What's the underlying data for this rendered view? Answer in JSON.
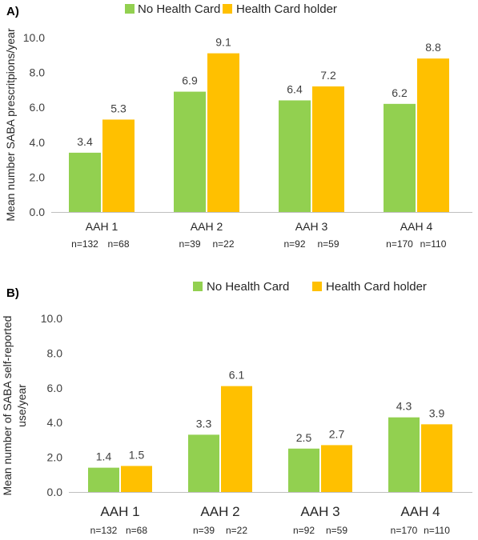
{
  "colors": {
    "no_card": "#92D050",
    "card_holder": "#FFC000",
    "axis": "#BFBFBF",
    "text": "#262626"
  },
  "chart_data": [
    {
      "panel": "A)",
      "type": "bar",
      "categories": [
        "AAH 1",
        "AAH 2",
        "AAH 3",
        "AAH 4"
      ],
      "series": [
        {
          "name": "No Health Card",
          "values": [
            3.4,
            6.9,
            6.4,
            6.2
          ],
          "labels": [
            "3.4",
            "6.9",
            "6.4",
            "6.2"
          ]
        },
        {
          "name": "Health Card holder",
          "values": [
            5.3,
            9.1,
            7.2,
            8.8
          ],
          "labels": [
            "5.3",
            "9.1",
            "7.2",
            "8.8"
          ]
        }
      ],
      "ylabel": "Mean number SABA prescritpions/year",
      "ylim": [
        0,
        10
      ],
      "yticks": [
        "0.0",
        "2.0",
        "4.0",
        "6.0",
        "8.0",
        "10.0"
      ],
      "sample_sizes": [
        [
          "n=132",
          "n=68"
        ],
        [
          "n=39",
          "n=22"
        ],
        [
          "n=92",
          "n=59"
        ],
        [
          "n=170",
          "n=110"
        ]
      ],
      "legend": "top-center",
      "grid": false
    },
    {
      "panel": "B)",
      "type": "bar",
      "categories": [
        "AAH 1",
        "AAH 2",
        "AAH 3",
        "AAH 4"
      ],
      "series": [
        {
          "name": "No Health Card",
          "values": [
            1.4,
            3.3,
            2.5,
            4.3
          ],
          "labels": [
            "1.4",
            "3.3",
            "2.5",
            "4.3"
          ]
        },
        {
          "name": "Health Card holder",
          "values": [
            1.5,
            6.1,
            2.7,
            3.9
          ],
          "labels": [
            "1.5",
            "6.1",
            "2.7",
            "3.9"
          ]
        }
      ],
      "ylabel_lines": [
        "Mean number of SABA self-reported",
        "use/year"
      ],
      "ylim": [
        0,
        10
      ],
      "yticks": [
        "0.0",
        "2.0",
        "4.0",
        "6.0",
        "8.0",
        "10.0"
      ],
      "sample_sizes": [
        [
          "n=132",
          "n=68"
        ],
        [
          "n=39",
          "n=22"
        ],
        [
          "n=92",
          "n=59"
        ],
        [
          "n=170",
          "n=110"
        ]
      ],
      "legend": "top-center",
      "grid": false
    }
  ]
}
